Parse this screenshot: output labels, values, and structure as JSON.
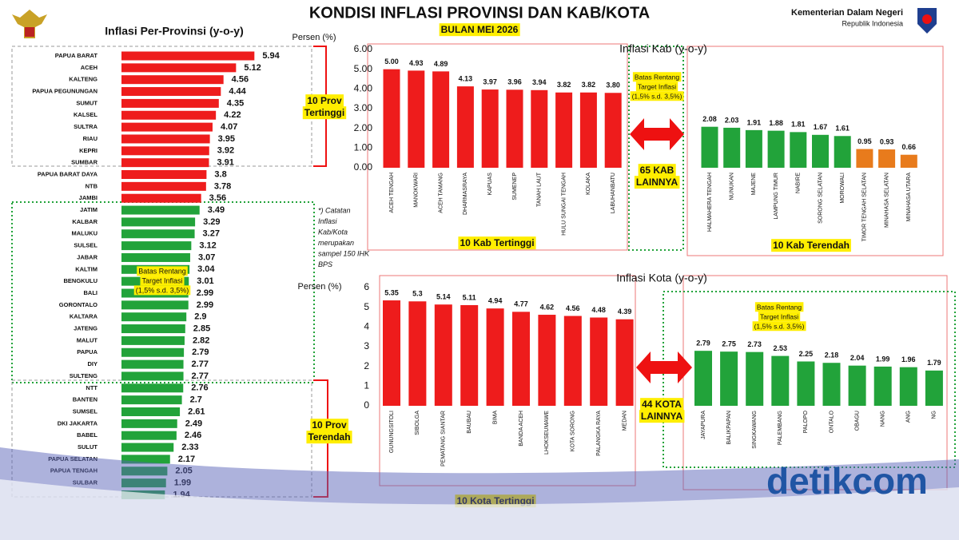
{
  "header": {
    "title": "KONDISI INFLASI PROVINSI DAN KAB/KOTA",
    "subtitle": "BULAN MEI 2026",
    "ministry": "Kementerian Dalam Negeri",
    "country": "Republik Indonesia",
    "watermark": "detikcom"
  },
  "chart_data": [
    {
      "type": "hbar",
      "title": "Inflasi Per-Provinsi (y-o-y)",
      "unit_label": "Persen (%)",
      "categories": [
        "PAPUA BARAT",
        "ACEH",
        "KALTENG",
        "PAPUA PEGUNUNGAN",
        "SUMUT",
        "KALSEL",
        "SULTRA",
        "RIAU",
        "KEPRI",
        "SUMBAR",
        "PAPUA BARAT DAYA",
        "NTB",
        "JAMBI",
        "JATIM",
        "KALBAR",
        "MALUKU",
        "SULSEL",
        "JABAR",
        "KALTIM",
        "BENGKULU",
        "BALI",
        "GORONTALO",
        "KALTARA",
        "JATENG",
        "MALUT",
        "PAPUA",
        "DIY",
        "SULTENG",
        "NTT",
        "BANTEN",
        "SUMSEL",
        "DKI JAKARTA",
        "BABEL",
        "SULUT",
        "PAPUA SELATAN",
        "PAPUA TENGAH",
        "SULBAR",
        null
      ],
      "values": [
        5.94,
        5.12,
        4.56,
        4.44,
        4.35,
        4.22,
        4.07,
        3.95,
        3.92,
        3.91,
        3.8,
        3.78,
        3.56,
        3.49,
        3.29,
        3.27,
        3.12,
        3.07,
        3.04,
        3.01,
        2.99,
        2.99,
        2.9,
        2.85,
        2.82,
        2.79,
        2.77,
        2.77,
        2.76,
        2.7,
        2.61,
        2.49,
        2.46,
        2.33,
        2.17,
        2.05,
        1.99,
        1.94
      ],
      "colors": [
        "#ee1c1c",
        "#ee1c1c",
        "#ee1c1c",
        "#ee1c1c",
        "#ee1c1c",
        "#ee1c1c",
        "#ee1c1c",
        "#ee1c1c",
        "#ee1c1c",
        "#ee1c1c",
        "#ee1c1c",
        "#ee1c1c",
        "#ee1c1c",
        "#22a33a",
        "#22a33a",
        "#22a33a",
        "#22a33a",
        "#22a33a",
        "#22a33a",
        "#22a33a",
        "#22a33a",
        "#22a33a",
        "#22a33a",
        "#22a33a",
        "#22a33a",
        "#22a33a",
        "#22a33a",
        "#22a33a",
        "#22a33a",
        "#22a33a",
        "#22a33a",
        "#22a33a",
        "#22a33a",
        "#22a33a",
        "#22a33a",
        "#22a33a",
        "#22a33a",
        "#22a33a"
      ],
      "annotations": {
        "top": [
          "10 Prov",
          "Tertinggi"
        ],
        "bottom": [
          "10 Prov",
          "Terendah"
        ],
        "target": [
          "Batas Rentang",
          "Target Inflasi",
          "(1,5% s.d. 3,5%)"
        ],
        "note": [
          "*) Catatan",
          "Inflasi",
          "Kab/Kota",
          "merupakan",
          "sampel 150 IHK",
          "BPS"
        ]
      }
    },
    {
      "type": "bar",
      "title": "Inflasi Kab (y-o-y)",
      "categories": [
        "ACEH TENGAH",
        "MANOKWARI",
        "ACEH TAMANG",
        "DHARMASRAYA",
        "KAPUAS",
        "SUMENEP",
        "TANAH LAUT",
        "HULU SUNGAI TENGAH",
        "KOLAKA",
        "LABUHANBATU",
        "HALMAHERA TENGAH",
        "NUNUKAN",
        "MAJENE",
        "LAMPUNG TIMUR",
        "NABIRE",
        "SORONG SELATAN",
        "MOROWALI",
        "TIMOR TENGAH SELATAN",
        "MINAHASA SELATAN",
        "MINAHASA UTARA"
      ],
      "values": [
        5.0,
        4.93,
        4.89,
        4.13,
        3.97,
        3.96,
        3.94,
        3.82,
        3.82,
        3.8,
        2.08,
        2.03,
        1.91,
        1.88,
        1.81,
        1.67,
        1.61,
        0.95,
        0.93,
        0.66
      ],
      "value_labels": [
        "5.00",
        "4.93",
        "4.89",
        "4.13",
        "3.97",
        "3.96",
        "3.94",
        "3.82",
        "3.82",
        "3.80",
        "2.08",
        "2.03",
        "1.91",
        "1.88",
        "1.81",
        "1.67",
        "1.61",
        "0.95",
        "0.93",
        "0.66"
      ],
      "colors": [
        "#ee1c1c",
        "#ee1c1c",
        "#ee1c1c",
        "#ee1c1c",
        "#ee1c1c",
        "#ee1c1c",
        "#ee1c1c",
        "#ee1c1c",
        "#ee1c1c",
        "#ee1c1c",
        "#22a33a",
        "#22a33a",
        "#22a33a",
        "#22a33a",
        "#22a33a",
        "#22a33a",
        "#22a33a",
        "#e87b1c",
        "#e87b1c",
        "#e87b1c"
      ],
      "ylim": [
        0,
        6
      ],
      "yticks": [
        {
          "value": 0,
          "label": "0.00"
        },
        {
          "value": 1,
          "label": "1.00"
        },
        {
          "value": 2,
          "label": "2.00"
        },
        {
          "value": 3,
          "label": "3.00"
        },
        {
          "value": 4,
          "label": "4.00"
        },
        {
          "value": 5,
          "label": "5.00"
        },
        {
          "value": 6,
          "label": "6.00"
        }
      ],
      "annotations": {
        "top": [
          "10 Kab Tertinggi"
        ],
        "bottom": [
          "10 Kab Terendah"
        ],
        "others": [
          "65 KAB",
          "LAINNYA"
        ],
        "target": [
          "Batas Rentang",
          "Target Inflasi",
          "(1,5% s.d. 3,5%)"
        ]
      }
    },
    {
      "type": "bar",
      "title": "Inflasi Kota (y-o-y)",
      "unit_label": "Persen (%)",
      "categories": [
        "GUNUNGSITOLI",
        "SIBOLGA",
        "PEMATANG SIANTAR",
        "BAUBAU",
        "BIMA",
        "BANDA ACEH",
        "LHOKSEUMAWE",
        "KOTA SORONG",
        "PALANGKA RAYA",
        "MEDAN",
        "JAYAPURA",
        "BALIKPAPAN",
        "SINGKAWANG",
        "PALEMBANG",
        "PALOPO",
        "ONTALO",
        "OBAGU",
        "NANG",
        "ANG",
        "NG"
      ],
      "values": [
        5.35,
        5.3,
        5.14,
        5.11,
        4.94,
        4.77,
        4.62,
        4.56,
        4.48,
        4.39,
        2.79,
        2.75,
        2.73,
        2.53,
        2.25,
        2.18,
        2.04,
        1.99,
        1.96,
        1.79
      ],
      "colors": [
        "#ee1c1c",
        "#ee1c1c",
        "#ee1c1c",
        "#ee1c1c",
        "#ee1c1c",
        "#ee1c1c",
        "#ee1c1c",
        "#ee1c1c",
        "#ee1c1c",
        "#ee1c1c",
        "#22a33a",
        "#22a33a",
        "#22a33a",
        "#22a33a",
        "#22a33a",
        "#22a33a",
        "#22a33a",
        "#22a33a",
        "#22a33a",
        "#22a33a"
      ],
      "ylim": [
        0,
        6
      ],
      "yticks": [
        0,
        1,
        2,
        3,
        4,
        5,
        6
      ],
      "annotations": {
        "top": [
          "10 Kota Tertinggi"
        ],
        "others": [
          "44 KOTA",
          "LAINNYA"
        ],
        "target": [
          "Batas Rentang",
          "Target Inflasi",
          "(1,5% s.d. 3,5%)"
        ]
      }
    }
  ]
}
